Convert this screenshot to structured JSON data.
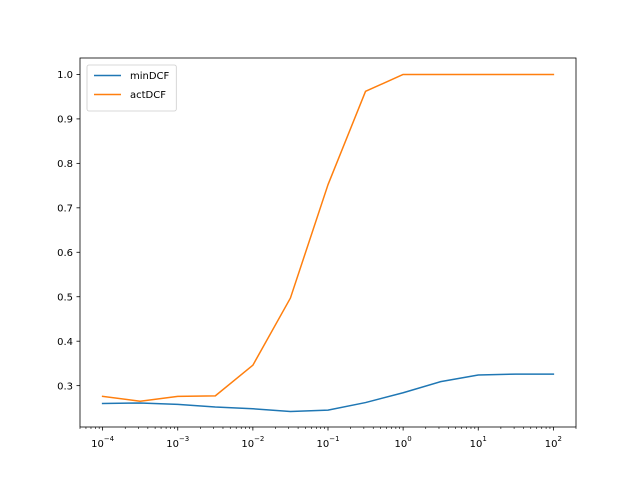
{
  "chart_data": {
    "type": "line",
    "title": "",
    "xlabel": "",
    "ylabel": "",
    "xscale": "log",
    "xlim": [
      5e-05,
      200
    ],
    "ylim": [
      0.207,
      1.037
    ],
    "grid": false,
    "legend_position": "upper-left",
    "x": [
      0.0001,
      0.000316,
      0.001,
      0.00316,
      0.01,
      0.0316,
      0.1,
      0.316,
      1,
      3.16,
      10,
      31.6,
      100
    ],
    "x_ticks": [
      {
        "value": 0.0001,
        "base": "10",
        "exp": "−4"
      },
      {
        "value": 0.001,
        "base": "10",
        "exp": "−3"
      },
      {
        "value": 0.01,
        "base": "10",
        "exp": "−2"
      },
      {
        "value": 0.1,
        "base": "10",
        "exp": "−1"
      },
      {
        "value": 1,
        "base": "10",
        "exp": "0"
      },
      {
        "value": 10,
        "base": "10",
        "exp": "1"
      },
      {
        "value": 100,
        "base": "10",
        "exp": "2"
      }
    ],
    "y_ticks": [
      {
        "value": 0.3,
        "label": "0.3"
      },
      {
        "value": 0.4,
        "label": "0.4"
      },
      {
        "value": 0.5,
        "label": "0.5"
      },
      {
        "value": 0.6,
        "label": "0.6"
      },
      {
        "value": 0.7,
        "label": "0.7"
      },
      {
        "value": 0.8,
        "label": "0.8"
      },
      {
        "value": 0.9,
        "label": "0.9"
      },
      {
        "value": 1.0,
        "label": "1.0"
      }
    ],
    "series": [
      {
        "name": "minDCF",
        "color": "#1f77b4",
        "values": [
          0.26,
          0.261,
          0.258,
          0.252,
          0.248,
          0.242,
          0.245,
          0.262,
          0.284,
          0.309,
          0.324,
          0.326,
          0.326
        ]
      },
      {
        "name": "actDCF",
        "color": "#ff7f0e",
        "values": [
          0.276,
          0.265,
          0.276,
          0.277,
          0.346,
          0.497,
          0.752,
          0.962,
          1.0,
          1.0,
          1.0,
          1.0,
          1.0
        ]
      }
    ]
  }
}
